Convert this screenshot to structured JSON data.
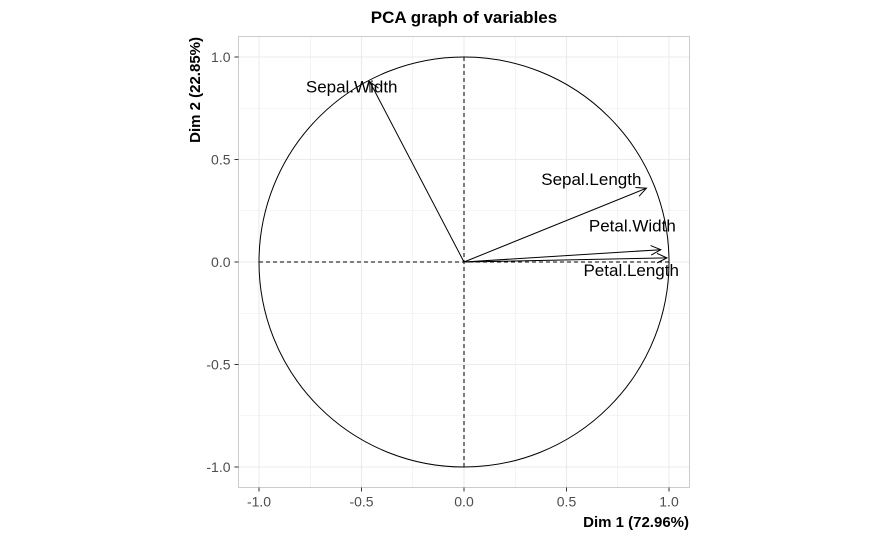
{
  "chart_data": {
    "type": "scatter",
    "subtype": "pca-correlation-circle",
    "title": "PCA graph of variables",
    "xlabel": "Dim 1 (72.96%)",
    "ylabel": "Dim 2 (22.85%)",
    "xlim": [
      -1.1,
      1.1
    ],
    "ylim": [
      -1.1,
      1.1
    ],
    "xticks": [
      -1.0,
      -0.5,
      0.0,
      0.5,
      1.0
    ],
    "yticks": [
      -1.0,
      -0.5,
      0.0,
      0.5,
      1.0
    ],
    "xtick_labels": [
      "-1.0",
      "-0.5",
      "0.0",
      "0.5",
      "1.0"
    ],
    "ytick_labels": [
      "-1.0",
      "-0.5",
      "0.0",
      "0.5",
      "1.0"
    ],
    "grid": true,
    "unit_circle": true,
    "variables": [
      {
        "name": "Sepal.Length",
        "x": 0.89,
        "y": 0.36
      },
      {
        "name": "Sepal.Width",
        "x": -0.46,
        "y": 0.88
      },
      {
        "name": "Petal.Length",
        "x": 0.99,
        "y": 0.02
      },
      {
        "name": "Petal.Width",
        "x": 0.96,
        "y": 0.06
      }
    ]
  }
}
